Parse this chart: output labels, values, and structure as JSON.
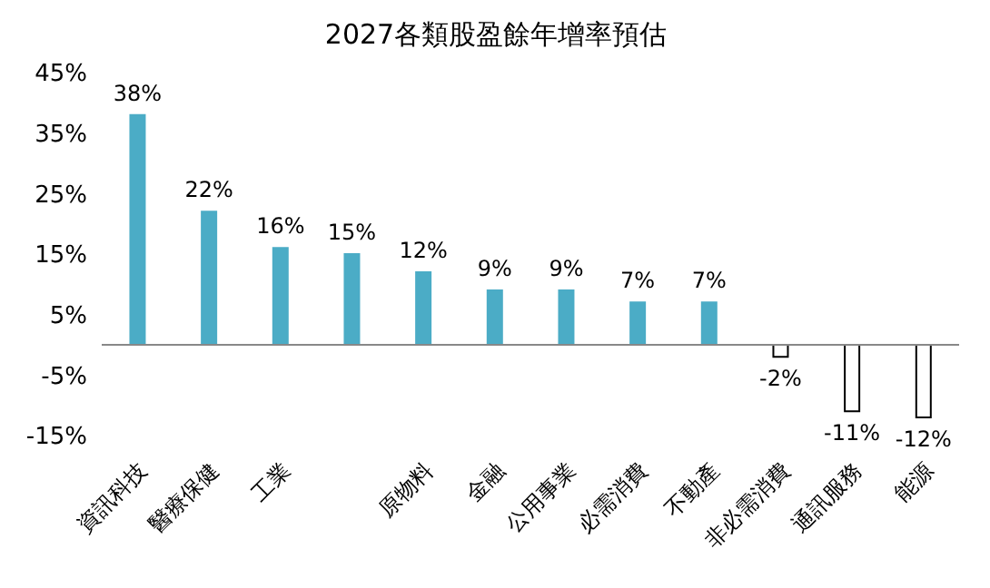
{
  "chart_data": {
    "type": "bar",
    "title": "2027各類股盈餘年增率預估",
    "categories": [
      "資訊科技",
      "醫療保健",
      "工業",
      null,
      "原物料",
      "金融",
      "公用事業",
      "必需消費",
      "不動產",
      "非必需消費",
      "通訊服務",
      "能源"
    ],
    "values": [
      38,
      22,
      16,
      15,
      12,
      9,
      9,
      7,
      7,
      -2,
      -11,
      -12
    ],
    "colors": [
      "#4bacc6",
      "#4bacc6",
      "#4bacc6",
      "#4bacc6",
      "#4bacc6",
      "#4bacc6",
      "#4bacc6",
      "#4bacc6",
      "#4bacc6",
      "#ffffff",
      "#ffffff",
      "#ffffff"
    ],
    "value_labels": [
      "38%",
      "22%",
      "16%",
      "15%",
      "12%",
      "9%",
      "9%",
      "7%",
      "7%",
      "-2%",
      "-11%",
      "-12%"
    ],
    "ylim": [
      -15,
      45
    ],
    "yticks": [
      {
        "value": 45,
        "label": "45%"
      },
      {
        "value": 35,
        "label": "35%"
      },
      {
        "value": 25,
        "label": "25%"
      },
      {
        "value": 15,
        "label": "15%"
      },
      {
        "value": 5,
        "label": "5%"
      },
      {
        "value": -5,
        "label": "-5%"
      },
      {
        "value": -15,
        "label": "-15%"
      }
    ],
    "grid": false,
    "legend": false
  }
}
